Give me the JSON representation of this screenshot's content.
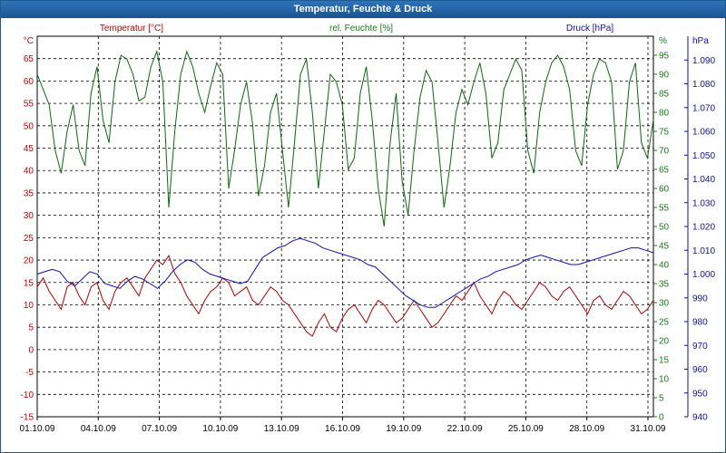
{
  "window": {
    "title": "Temperatur, Feuchte & Druck"
  },
  "chart_data": {
    "type": "line",
    "title": "Temperatur, Feuchte & Druck",
    "x_ticks": [
      "01.10.09",
      "04.10.09",
      "07.10.09",
      "10.10.09",
      "13.10.09",
      "16.10.09",
      "19.10.09",
      "22.10.09",
      "25.10.09",
      "28.10.09",
      "31.10.09"
    ],
    "axes": {
      "temperature": {
        "unit": "°C",
        "range": [
          -15,
          70
        ],
        "ticks": [
          "-15",
          "-10",
          "-5",
          "0",
          "5",
          "10",
          "15",
          "20",
          "25",
          "30",
          "35",
          "40",
          "45",
          "50",
          "55",
          "60",
          "65"
        ],
        "color": "#c00000"
      },
      "humidity": {
        "unit": "%",
        "range": [
          0,
          100
        ],
        "ticks": [
          "0",
          "5",
          "10",
          "15",
          "20",
          "25",
          "30",
          "35",
          "40",
          "45",
          "50",
          "55",
          "60",
          "65",
          "70",
          "75",
          "80",
          "85",
          "90",
          "95"
        ],
        "color": "#1a7a1a"
      },
      "pressure": {
        "unit": "hPa",
        "range": [
          940,
          1100
        ],
        "ticks": [
          "940",
          "950",
          "960",
          "970",
          "980",
          "990",
          "1.000",
          "1.010",
          "1.020",
          "1.030",
          "1.040",
          "1.050",
          "1.060",
          "1.070",
          "1.080",
          "1.090"
        ],
        "color": "#1010a0"
      }
    },
    "series": [
      {
        "name": "Temperatur [°C]",
        "axis": "temperature",
        "color": "#b00000",
        "values": [
          14,
          16,
          13,
          11,
          9,
          14,
          15,
          12,
          10,
          14,
          15,
          11,
          9,
          13,
          15,
          16,
          14,
          12,
          16,
          18,
          20,
          19,
          21,
          17,
          15,
          12,
          10,
          8,
          11,
          13,
          14,
          16,
          15,
          12,
          13,
          14,
          11,
          10,
          12,
          14,
          13,
          11,
          10,
          8,
          6,
          4,
          3,
          6,
          8,
          5,
          4,
          7,
          9,
          10,
          8,
          6,
          9,
          11,
          10,
          8,
          6,
          7,
          9,
          11,
          9,
          7,
          5,
          6,
          8,
          10,
          12,
          11,
          13,
          15,
          12,
          10,
          8,
          11,
          13,
          12,
          10,
          9,
          11,
          13,
          15,
          14,
          12,
          11,
          13,
          14,
          12,
          10,
          8,
          11,
          12,
          10,
          9,
          11,
          13,
          12,
          10,
          8,
          9,
          11
        ]
      },
      {
        "name": "rel. Feuchte [%]",
        "axis": "humidity",
        "color": "#0a6a0a",
        "values": [
          90,
          86,
          82,
          70,
          64,
          75,
          82,
          70,
          66,
          85,
          92,
          78,
          72,
          88,
          95,
          94,
          90,
          83,
          84,
          92,
          96,
          88,
          55,
          75,
          90,
          96,
          92,
          85,
          80,
          87,
          93,
          90,
          60,
          70,
          82,
          88,
          77,
          58,
          66,
          80,
          85,
          70,
          55,
          72,
          90,
          94,
          80,
          60,
          75,
          90,
          88,
          82,
          65,
          68,
          85,
          92,
          78,
          60,
          50,
          72,
          85,
          62,
          53,
          70,
          84,
          91,
          88,
          72,
          55,
          66,
          80,
          86,
          82,
          88,
          93,
          85,
          68,
          72,
          86,
          90,
          94,
          91,
          70,
          64,
          80,
          88,
          93,
          95,
          92,
          86,
          70,
          66,
          82,
          90,
          94,
          93,
          88,
          65,
          70,
          88,
          93,
          72,
          68,
          78
        ]
      },
      {
        "name": "Druck [hPa]",
        "axis": "pressure",
        "color": "#1010b0",
        "values": [
          1000,
          1001,
          1002,
          1001,
          997,
          995,
          998,
          1001,
          1000,
          996,
          995,
          994,
          997,
          999,
          998,
          996,
          994,
          997,
          1001,
          1004,
          1006,
          1005,
          1002,
          1000,
          999,
          998,
          997,
          996,
          997,
          1002,
          1007,
          1009,
          1011,
          1012,
          1014,
          1015,
          1014,
          1013,
          1011,
          1010,
          1009,
          1008,
          1007,
          1006,
          1004,
          1003,
          1000,
          997,
          994,
          991,
          989,
          987,
          986,
          986,
          988,
          990,
          992,
          994,
          996,
          998,
          999,
          1001,
          1002,
          1003,
          1004,
          1006,
          1007,
          1008,
          1007,
          1006,
          1005,
          1004,
          1004,
          1005,
          1006,
          1007,
          1008,
          1009,
          1010,
          1011,
          1011,
          1010,
          1009
        ]
      }
    ]
  }
}
